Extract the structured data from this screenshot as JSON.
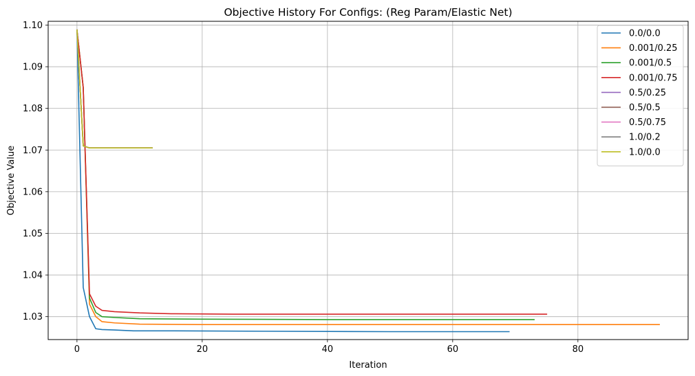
{
  "chart_data": {
    "type": "line",
    "title": "Objective History For Configs: (Reg Param/Elastic Net)",
    "xlabel": "Iteration",
    "ylabel": "Objective Value",
    "xlim": [
      -4.6,
      97.6
    ],
    "ylim": [
      1.0245,
      1.1009
    ],
    "xticks": [
      0,
      20,
      40,
      60,
      80
    ],
    "yticks": [
      1.03,
      1.04,
      1.05,
      1.06,
      1.07,
      1.08,
      1.09,
      1.1
    ],
    "ytick_labels": [
      "1.03",
      "1.04",
      "1.05",
      "1.06",
      "1.07",
      "1.08",
      "1.09",
      "1.10"
    ],
    "grid": true,
    "legend_position": "top-right",
    "series": [
      {
        "name": "0.0/0.0",
        "color": "#1f77b4",
        "x": [
          0,
          1,
          2,
          3,
          4,
          6,
          9,
          15,
          30,
          50,
          69
        ],
        "y": [
          1.0988,
          1.037,
          1.03,
          1.0271,
          1.0269,
          1.0268,
          1.0266,
          1.0266,
          1.0265,
          1.0264,
          1.0264
        ]
      },
      {
        "name": "0.001/0.25",
        "color": "#ff7f0e",
        "x": [
          0,
          1,
          2,
          3,
          4,
          6,
          10,
          20,
          40,
          60,
          93
        ],
        "y": [
          1.0988,
          1.085,
          1.033,
          1.03,
          1.0288,
          1.0285,
          1.0282,
          1.0281,
          1.0281,
          1.0281,
          1.0281
        ]
      },
      {
        "name": "0.001/0.5",
        "color": "#2ca02c",
        "x": [
          0,
          1,
          2,
          3,
          4,
          6,
          10,
          20,
          40,
          60,
          73
        ],
        "y": [
          1.0988,
          1.085,
          1.0345,
          1.031,
          1.03,
          1.0298,
          1.0295,
          1.0294,
          1.0293,
          1.0293,
          1.0293
        ]
      },
      {
        "name": "0.001/0.75",
        "color": "#d62728",
        "x": [
          0,
          1,
          2,
          3,
          4,
          6,
          10,
          15,
          25,
          50,
          75
        ],
        "y": [
          1.0988,
          1.085,
          1.0355,
          1.0325,
          1.0315,
          1.0312,
          1.0309,
          1.0307,
          1.0306,
          1.0306,
          1.0306
        ]
      },
      {
        "name": "0.5/0.25",
        "color": "#9467bd",
        "x": [
          0,
          1,
          2,
          3,
          5,
          8,
          12
        ],
        "y": [
          1.0988,
          1.071,
          1.0705,
          1.0705,
          1.0705,
          1.0705,
          1.0705
        ]
      },
      {
        "name": "0.5/0.5",
        "color": "#8c564b",
        "x": [
          0,
          1,
          2,
          3,
          5,
          8,
          12
        ],
        "y": [
          1.0988,
          1.071,
          1.0705,
          1.0705,
          1.0705,
          1.0705,
          1.0705
        ]
      },
      {
        "name": "0.5/0.75",
        "color": "#e377c2",
        "x": [
          0,
          1,
          2,
          3,
          5,
          8,
          12
        ],
        "y": [
          1.0988,
          1.071,
          1.0705,
          1.0705,
          1.0705,
          1.0705,
          1.0705
        ]
      },
      {
        "name": "1.0/0.2",
        "color": "#7f7f7f",
        "x": [
          0,
          1,
          2,
          3,
          5,
          8,
          12
        ],
        "y": [
          1.0988,
          1.071,
          1.0705,
          1.0705,
          1.0705,
          1.0705,
          1.0705
        ]
      },
      {
        "name": "1.0/0.0",
        "color": "#bcbd22",
        "x": [
          0,
          1,
          2,
          3,
          5,
          8,
          12
        ],
        "y": [
          1.0988,
          1.071,
          1.0705,
          1.0705,
          1.0705,
          1.0705,
          1.0705
        ]
      }
    ]
  }
}
